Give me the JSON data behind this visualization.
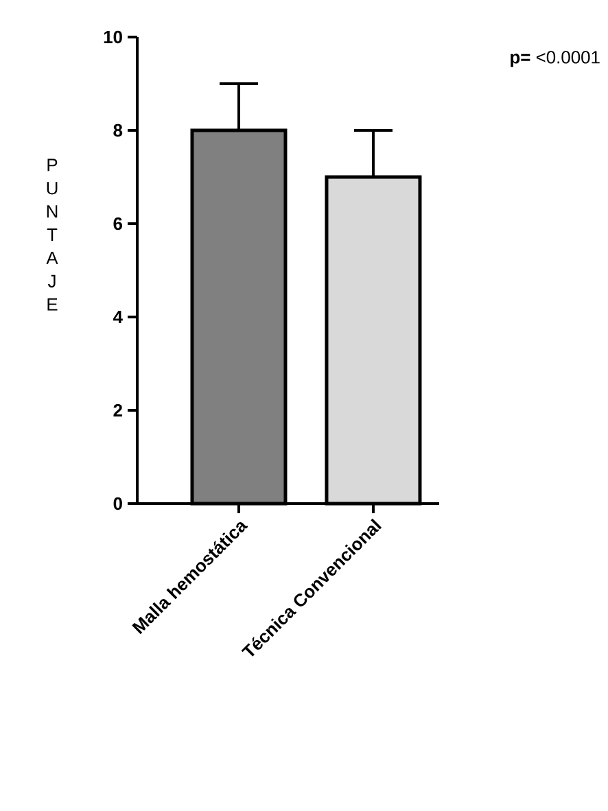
{
  "chart_data": {
    "type": "bar",
    "categories": [
      "Malla hemostática",
      "Técnica Convencional"
    ],
    "values": [
      8,
      7
    ],
    "colors": [
      "#808080",
      "#d9d9d9"
    ],
    "errors": [
      [
        8,
        9
      ],
      [
        7,
        8
      ]
    ],
    "ylabel": "P U N T A J E",
    "ylim": [
      0,
      10
    ],
    "yticks": [
      0,
      2,
      4,
      6,
      8,
      10
    ],
    "annotations": [
      "**p=** <0.0001"
    ]
  }
}
